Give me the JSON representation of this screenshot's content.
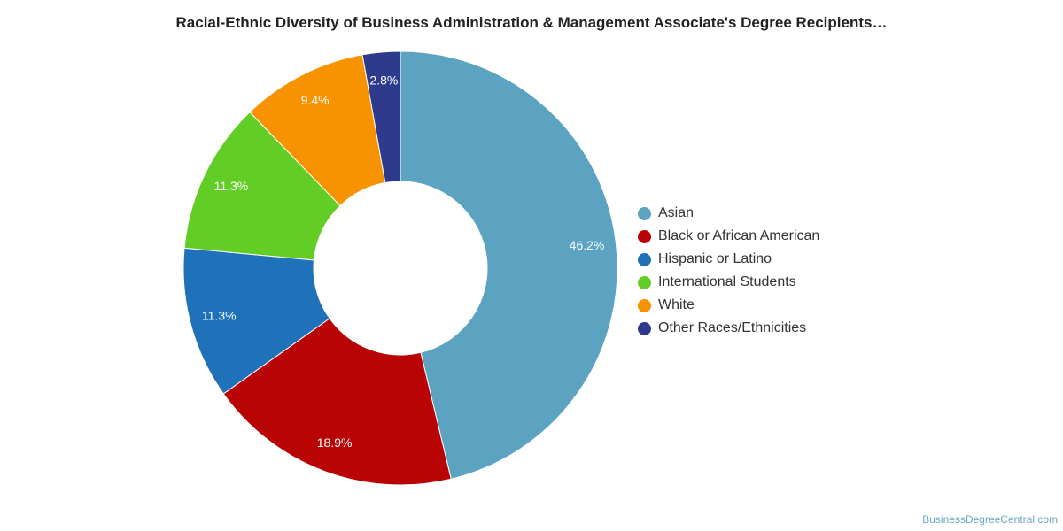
{
  "chart_data": {
    "type": "pie",
    "title": "Racial-Ethnic Diversity of Business Administration & Management Associate's Degree Recipients…",
    "donut": true,
    "legend_position": "right",
    "slices": [
      {
        "label": "Asian",
        "value": 46.2,
        "value_label": "46.2%",
        "color": "#5ba3c0"
      },
      {
        "label": "Black or African American",
        "value": 18.9,
        "value_label": "18.9%",
        "color": "#b80404"
      },
      {
        "label": "Hispanic or Latino",
        "value": 11.3,
        "value_label": "11.3%",
        "color": "#1f72b9"
      },
      {
        "label": "International Students",
        "value": 11.3,
        "value_label": "11.3%",
        "color": "#62cd25"
      },
      {
        "label": "White",
        "value": 9.4,
        "value_label": "9.4%",
        "color": "#f79300"
      },
      {
        "label": "Other Races/Ethnicities",
        "value": 2.8,
        "value_label": "2.8%",
        "color": "#2e3a8c"
      }
    ]
  },
  "credit": "BusinessDegreeCentral.com"
}
